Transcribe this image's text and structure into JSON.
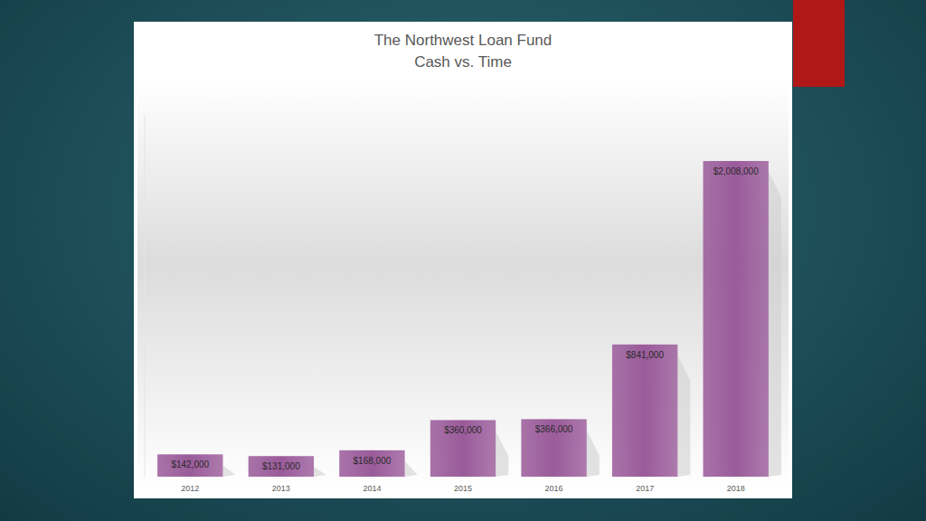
{
  "chart_data": {
    "type": "bar",
    "title": "The Northwest Loan Fund",
    "subtitle": "Cash vs. Time",
    "categories": [
      "2012",
      "2013",
      "2014",
      "2015",
      "2016",
      "2017",
      "2018"
    ],
    "values": [
      142000,
      131000,
      168000,
      360000,
      366000,
      841000,
      2008000
    ],
    "value_labels": [
      "$142,000",
      "$131,000",
      "$168,000",
      "$360,000",
      "$366,000",
      "$841,000",
      "$2,008,000"
    ],
    "color": "#9a5b9a",
    "ylim": [
      0,
      2300000
    ],
    "data_labels": true,
    "tick_labels": "x",
    "grid": false
  }
}
